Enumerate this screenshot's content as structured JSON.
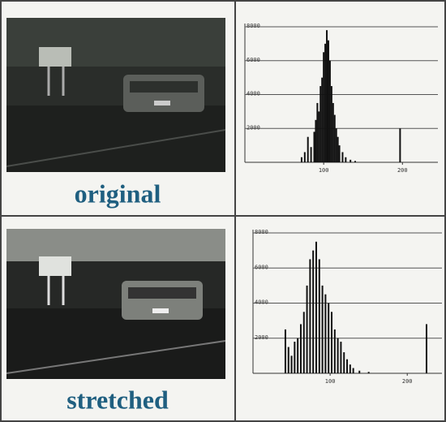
{
  "captions": [
    "original",
    "stretched"
  ],
  "chart_data": [
    {
      "type": "bar",
      "x": [
        72,
        76,
        80,
        84,
        88,
        90,
        92,
        94,
        96,
        98,
        100,
        102,
        104,
        106,
        108,
        110,
        112,
        114,
        116,
        118,
        120,
        124,
        128,
        134,
        140,
        197
      ],
      "values": [
        300,
        600,
        1500,
        900,
        1800,
        2500,
        3500,
        3000,
        4500,
        5000,
        6500,
        7000,
        7800,
        7200,
        6000,
        4500,
        3500,
        2800,
        2000,
        1500,
        1000,
        600,
        300,
        150,
        80,
        2000
      ],
      "color": "#111111",
      "xlim": [
        0,
        245
      ],
      "xticks": [
        100,
        200
      ],
      "ylim": [
        0,
        8000
      ],
      "yticks": [
        2000,
        4000,
        6000,
        8000
      ],
      "grid": true
    },
    {
      "type": "bar",
      "x": [
        42,
        46,
        50,
        54,
        58,
        62,
        66,
        70,
        74,
        78,
        82,
        86,
        90,
        94,
        98,
        102,
        106,
        110,
        114,
        118,
        122,
        126,
        130,
        138,
        150,
        225
      ],
      "values": [
        2500,
        1500,
        1000,
        1800,
        2000,
        2800,
        3500,
        5000,
        6500,
        7000,
        7500,
        6500,
        5000,
        4500,
        4000,
        3500,
        2500,
        2000,
        1800,
        1200,
        800,
        500,
        300,
        150,
        80,
        2800
      ],
      "color": "#111111",
      "xlim": [
        0,
        245
      ],
      "xticks": [
        100,
        200
      ],
      "ylim": [
        0,
        8000
      ],
      "yticks": [
        2000,
        4000,
        6000,
        8000
      ],
      "grid": true
    }
  ]
}
